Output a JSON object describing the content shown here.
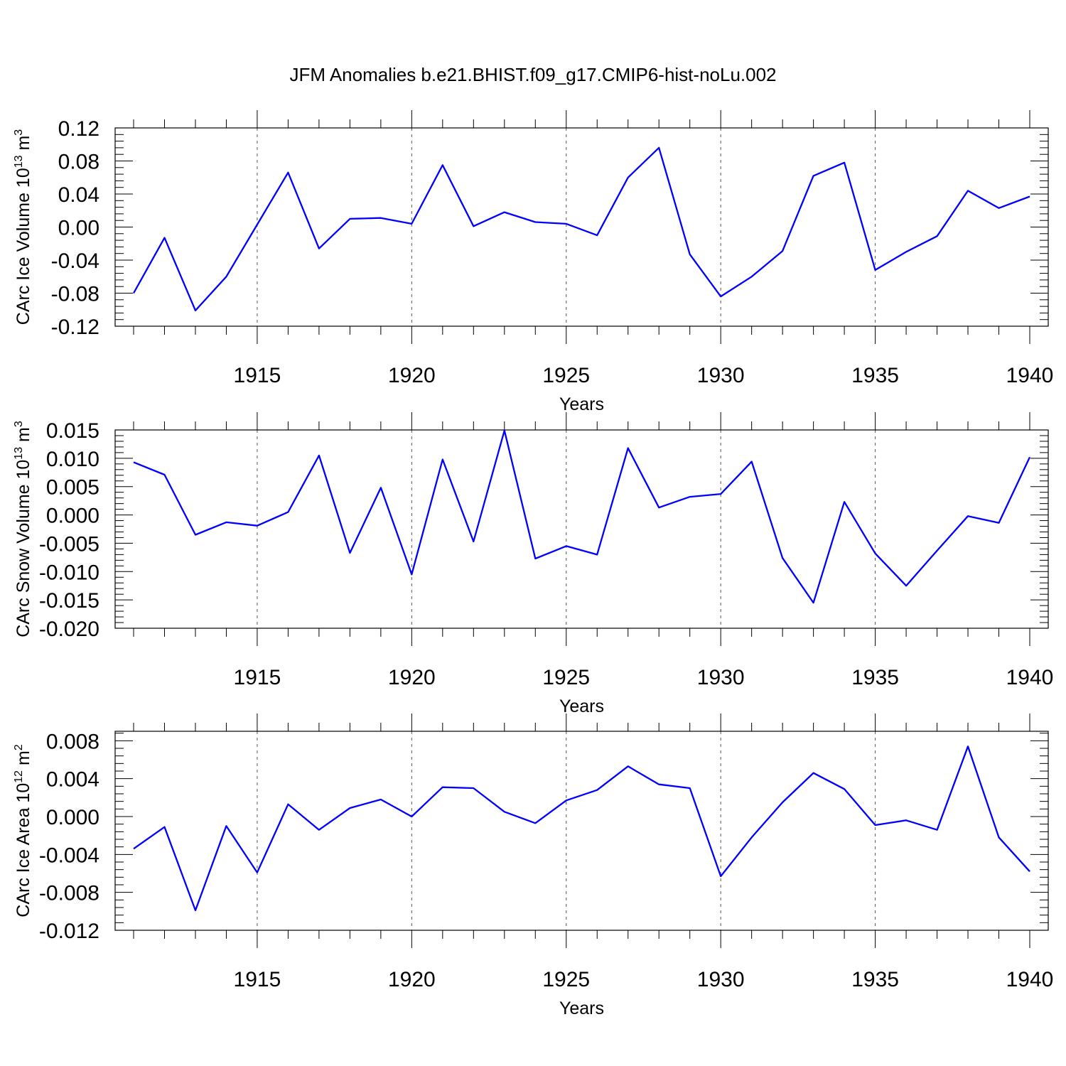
{
  "title": "JFM Anomalies b.e21.BHIST.f09_g17.CMIP6-hist-noLu.002",
  "colors": {
    "line": "#0000ff",
    "axis": "#000000",
    "grid": "#555555"
  },
  "chart_data": [
    {
      "type": "line",
      "title": "JFM Anomalies b.e21.BHIST.f09_g17.CMIP6-hist-noLu.002",
      "xlabel": "Years",
      "ylabel": "CArc Ice Volume 10",
      "ylabel_exp": "13",
      "ylabel_unit": " m",
      "ylabel_unit_exp": "3",
      "xlim": [
        1911,
        1940
      ],
      "ylim": [
        -0.12,
        0.12
      ],
      "xticks": [
        1915,
        1920,
        1925,
        1930,
        1935,
        1940
      ],
      "yticks": [
        "-0.12",
        "-0.08",
        "-0.04",
        "0.00",
        "0.04",
        "0.08",
        "0.12"
      ],
      "x": [
        1911,
        1912,
        1913,
        1914,
        1915,
        1916,
        1917,
        1918,
        1919,
        1920,
        1921,
        1922,
        1923,
        1924,
        1925,
        1926,
        1927,
        1928,
        1929,
        1930,
        1931,
        1932,
        1933,
        1934,
        1935,
        1936,
        1937,
        1938,
        1939,
        1940
      ],
      "series": [
        {
          "name": "CArc Ice Volume",
          "values": [
            -0.08,
            -0.013,
            -0.101,
            -0.06,
            0.003,
            0.066,
            -0.026,
            0.01,
            0.011,
            0.004,
            0.075,
            0.001,
            0.018,
            0.006,
            0.004,
            -0.01,
            0.06,
            0.096,
            -0.033,
            -0.084,
            -0.06,
            -0.029,
            0.062,
            0.078,
            -0.052,
            -0.03,
            -0.011,
            0.044,
            0.023,
            0.037
          ]
        }
      ]
    },
    {
      "type": "line",
      "xlabel": "Years",
      "ylabel": "CArc Snow Volume 10",
      "ylabel_exp": "13",
      "ylabel_unit": " m",
      "ylabel_unit_exp": "3",
      "xlim": [
        1911,
        1940
      ],
      "ylim": [
        -0.02,
        0.015
      ],
      "xticks": [
        1915,
        1920,
        1925,
        1930,
        1935,
        1940
      ],
      "yticks": [
        "-0.020",
        "-0.015",
        "-0.010",
        "-0.005",
        "0.000",
        "0.005",
        "0.010",
        "0.015"
      ],
      "x": [
        1911,
        1912,
        1913,
        1914,
        1915,
        1916,
        1917,
        1918,
        1919,
        1920,
        1921,
        1922,
        1923,
        1924,
        1925,
        1926,
        1927,
        1928,
        1929,
        1930,
        1931,
        1932,
        1933,
        1934,
        1935,
        1936,
        1937,
        1938,
        1939,
        1940
      ],
      "series": [
        {
          "name": "CArc Snow Volume",
          "values": [
            0.0093,
            0.0071,
            -0.0035,
            -0.0013,
            -0.0019,
            0.0005,
            0.0105,
            -0.0067,
            0.0048,
            -0.0105,
            0.0098,
            -0.0047,
            0.0149,
            -0.0077,
            -0.0055,
            -0.007,
            0.0118,
            0.0013,
            0.0032,
            0.0037,
            0.0094,
            -0.0076,
            -0.0155,
            0.0023,
            -0.0068,
            -0.0125,
            -0.0063,
            -0.0002,
            -0.0014,
            0.0102
          ]
        }
      ]
    },
    {
      "type": "line",
      "xlabel": "Years",
      "ylabel": "CArc Ice Area 10",
      "ylabel_exp": "12",
      "ylabel_unit": " m",
      "ylabel_unit_exp": "2",
      "xlim": [
        1911,
        1940
      ],
      "ylim": [
        -0.012,
        0.009
      ],
      "xticks": [
        1915,
        1920,
        1925,
        1930,
        1935,
        1940
      ],
      "yticks": [
        "-0.012",
        "-0.008",
        "-0.004",
        "0.000",
        "0.004",
        "0.008"
      ],
      "x": [
        1911,
        1912,
        1913,
        1914,
        1915,
        1916,
        1917,
        1918,
        1919,
        1920,
        1921,
        1922,
        1923,
        1924,
        1925,
        1926,
        1927,
        1928,
        1929,
        1930,
        1931,
        1932,
        1933,
        1934,
        1935,
        1936,
        1937,
        1938,
        1939,
        1940
      ],
      "series": [
        {
          "name": "CArc Ice Area",
          "values": [
            -0.0034,
            -0.0011,
            -0.0099,
            -0.001,
            -0.0059,
            0.0013,
            -0.0014,
            0.0009,
            0.0018,
            0.0,
            0.0031,
            0.003,
            0.0005,
            -0.0007,
            0.0017,
            0.0028,
            0.0053,
            0.0034,
            0.003,
            -0.0063,
            -0.0022,
            0.0015,
            0.0046,
            0.0029,
            -0.0009,
            -0.0004,
            -0.0014,
            0.0074,
            -0.0022,
            -0.0058
          ]
        }
      ]
    }
  ]
}
